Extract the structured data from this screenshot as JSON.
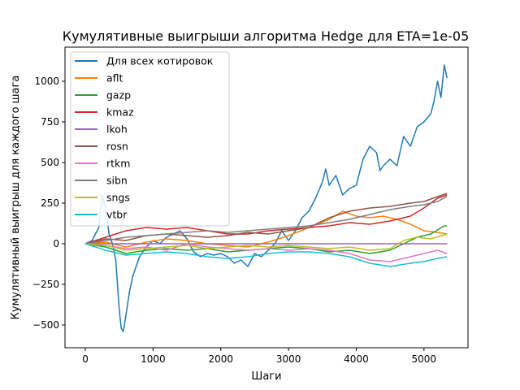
{
  "chart_data": {
    "type": "line",
    "title": "Кумулятивные выигрыши алгоритма Hedge для ETA=1e-05",
    "xlabel": "Шаги",
    "ylabel": "Кумулятивный выигрыш для каждого шага",
    "xlim": [
      -300,
      5650
    ],
    "ylim": [
      -640,
      1210
    ],
    "xticks": [
      0,
      1000,
      2000,
      3000,
      4000,
      5000
    ],
    "yticks": [
      -500,
      -250,
      0,
      250,
      500,
      750,
      1000
    ],
    "grid": false,
    "legend_position": "top-left",
    "series": [
      {
        "name": "Для всех котировок",
        "color": "#1f77b4",
        "x": [
          0,
          100,
          200,
          250,
          300,
          350,
          400,
          450,
          500,
          530,
          560,
          600,
          650,
          700,
          800,
          900,
          1000,
          1100,
          1200,
          1300,
          1400,
          1500,
          1600,
          1700,
          1800,
          1900,
          2000,
          2100,
          2200,
          2300,
          2400,
          2500,
          2600,
          2700,
          2800,
          2900,
          3000,
          3100,
          3200,
          3300,
          3400,
          3500,
          3550,
          3600,
          3700,
          3800,
          3900,
          4000,
          4100,
          4200,
          4300,
          4350,
          4400,
          4500,
          4600,
          4700,
          4800,
          4900,
          5000,
          5100,
          5150,
          5200,
          5250,
          5300,
          5340
        ],
        "y": [
          0,
          20,
          100,
          300,
          220,
          60,
          0,
          -100,
          -400,
          -520,
          -540,
          -440,
          -300,
          -200,
          -80,
          -20,
          20,
          0,
          40,
          60,
          80,
          30,
          -50,
          -80,
          -60,
          -70,
          -60,
          -80,
          -120,
          -100,
          -140,
          -60,
          -80,
          -40,
          0,
          80,
          20,
          80,
          160,
          200,
          280,
          380,
          460,
          360,
          420,
          300,
          340,
          360,
          520,
          600,
          560,
          450,
          480,
          520,
          480,
          660,
          600,
          720,
          750,
          800,
          880,
          1000,
          900,
          1100,
          1020
        ]
      },
      {
        "name": "aflt",
        "color": "#ff7f0e",
        "x": [
          0,
          300,
          600,
          900,
          1200,
          1500,
          1800,
          2100,
          2400,
          2700,
          3000,
          3300,
          3600,
          3800,
          4000,
          4200,
          4400,
          4600,
          4800,
          5000,
          5200,
          5340
        ],
        "y": [
          0,
          10,
          -20,
          10,
          30,
          20,
          0,
          -10,
          -20,
          10,
          50,
          100,
          150,
          200,
          170,
          160,
          170,
          150,
          120,
          80,
          70,
          60
        ]
      },
      {
        "name": "gazp",
        "color": "#2ca02c",
        "x": [
          0,
          300,
          600,
          900,
          1200,
          1500,
          1800,
          2100,
          2400,
          2700,
          3000,
          3300,
          3600,
          3900,
          4200,
          4500,
          4700,
          4900,
          5100,
          5300,
          5340
        ],
        "y": [
          0,
          -20,
          -60,
          -40,
          -30,
          -40,
          -30,
          -50,
          -40,
          -30,
          -20,
          -30,
          -50,
          -40,
          -60,
          -40,
          0,
          40,
          60,
          110,
          110
        ]
      },
      {
        "name": "kmaz",
        "color": "#d62728",
        "x": [
          0,
          300,
          600,
          900,
          1200,
          1500,
          1800,
          2100,
          2400,
          2700,
          3000,
          3300,
          3600,
          3900,
          4200,
          4500,
          4800,
          5000,
          5200,
          5340
        ],
        "y": [
          0,
          40,
          80,
          100,
          90,
          100,
          80,
          60,
          60,
          80,
          90,
          100,
          110,
          130,
          120,
          140,
          170,
          220,
          280,
          300
        ]
      },
      {
        "name": "lkoh",
        "color": "#9467bd",
        "x": [
          0,
          5340
        ],
        "y": [
          0,
          0
        ]
      },
      {
        "name": "rosn",
        "color": "#8c564b",
        "x": [
          0,
          300,
          600,
          900,
          1200,
          1500,
          1800,
          2100,
          2400,
          2700,
          3000,
          3300,
          3600,
          3900,
          4200,
          4500,
          4800,
          5000,
          5200,
          5340
        ],
        "y": [
          0,
          30,
          20,
          50,
          60,
          50,
          40,
          50,
          70,
          60,
          80,
          100,
          160,
          200,
          220,
          230,
          250,
          260,
          290,
          310
        ]
      },
      {
        "name": "rtkm",
        "color": "#e377c2",
        "x": [
          0,
          300,
          600,
          900,
          1200,
          1500,
          1800,
          2100,
          2400,
          2700,
          3000,
          3300,
          3600,
          3900,
          4200,
          4500,
          4800,
          5000,
          5200,
          5340
        ],
        "y": [
          0,
          -10,
          -30,
          -20,
          -40,
          0,
          -20,
          -30,
          -40,
          -30,
          -40,
          -30,
          -40,
          -60,
          -100,
          -110,
          -80,
          -60,
          -40,
          -60
        ]
      },
      {
        "name": "sibn",
        "color": "#7f7f7f",
        "x": [
          0,
          300,
          600,
          900,
          1200,
          1500,
          1800,
          2100,
          2400,
          2700,
          3000,
          3300,
          3600,
          3900,
          4200,
          4500,
          4800,
          5000,
          5200,
          5340
        ],
        "y": [
          0,
          20,
          40,
          50,
          60,
          70,
          80,
          70,
          80,
          90,
          100,
          110,
          130,
          150,
          180,
          210,
          230,
          240,
          260,
          290
        ]
      },
      {
        "name": "sngs",
        "color": "#bcbd22",
        "x": [
          0,
          300,
          600,
          900,
          1200,
          1500,
          1800,
          2100,
          2400,
          2700,
          3000,
          3300,
          3600,
          3900,
          4200,
          4500,
          4700,
          4900,
          5100,
          5340
        ],
        "y": [
          0,
          -10,
          -40,
          -30,
          -20,
          -10,
          -30,
          -20,
          -10,
          -20,
          -10,
          -20,
          -30,
          -20,
          -40,
          -30,
          20,
          40,
          30,
          60
        ]
      },
      {
        "name": "vtbr",
        "color": "#17becf",
        "x": [
          0,
          300,
          600,
          900,
          1200,
          1500,
          1800,
          2100,
          2400,
          2700,
          3000,
          3300,
          3600,
          3900,
          4200,
          4500,
          4800,
          5000,
          5200,
          5340
        ],
        "y": [
          0,
          -40,
          -70,
          -60,
          -50,
          -60,
          -80,
          -90,
          -80,
          -60,
          -50,
          -50,
          -60,
          -80,
          -120,
          -140,
          -120,
          -110,
          -90,
          -80
        ]
      }
    ]
  }
}
